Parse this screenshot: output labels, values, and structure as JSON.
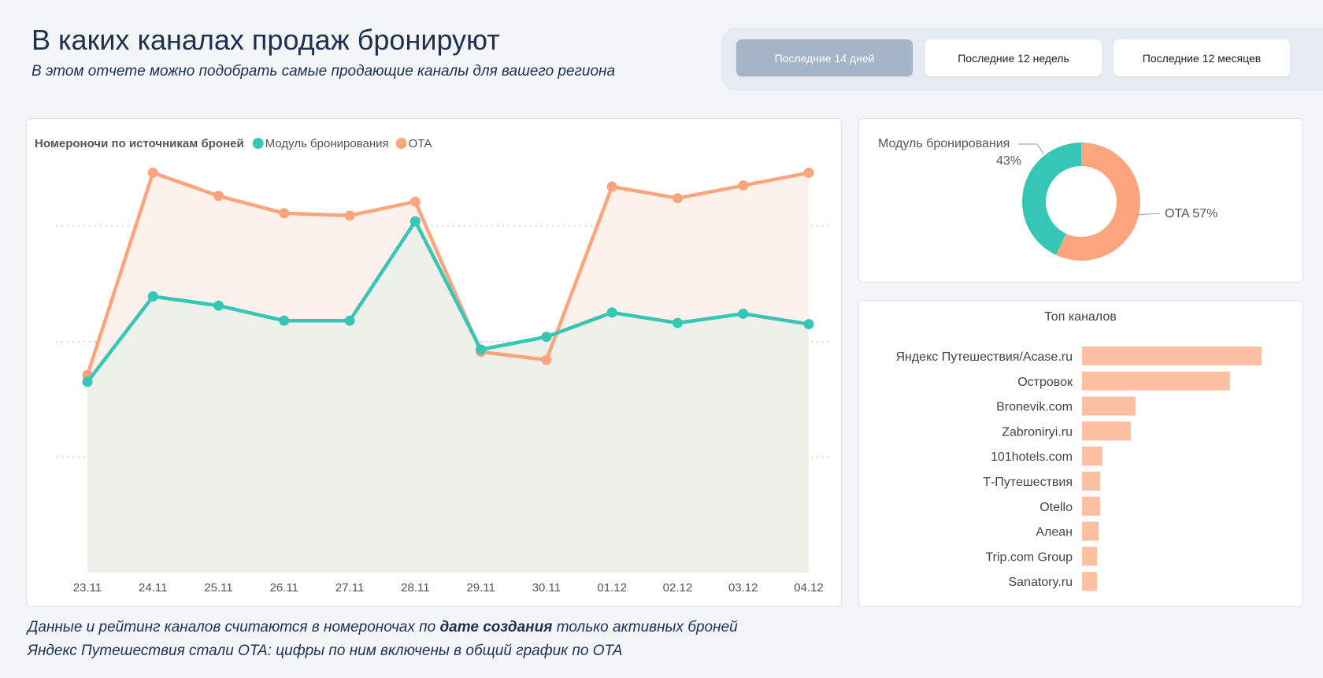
{
  "header": {
    "title": "В каких каналах продаж бронируют",
    "subtitle": "В этом отчете можно подобрать самые продающие каналы для вашего региона"
  },
  "period_filter": {
    "buttons": [
      {
        "label": "Последние 14 дней",
        "active": true
      },
      {
        "label": "Последние 12 недель",
        "active": false
      },
      {
        "label": "Последние 12 месяцев",
        "active": false
      }
    ]
  },
  "colors": {
    "module": "#35c6b6",
    "ota": "#fba47d",
    "bars": "#fcbfa2",
    "active_button": "#a6b4c8"
  },
  "chart_data": [
    {
      "type": "line",
      "title": "Номероночи по источникам броней",
      "legend_placement": "top-left",
      "grid": true,
      "x": [
        "23.11",
        "24.11",
        "25.11",
        "26.11",
        "27.11",
        "28.11",
        "29.11",
        "30.11",
        "01.12",
        "02.12",
        "03.12",
        "04.12"
      ],
      "ylim": [
        0,
        3.7
      ],
      "series": [
        {
          "name": "Модуль бронирования",
          "values": [
            1.65,
            2.39,
            2.31,
            2.18,
            2.18,
            3.04,
            1.93,
            2.04,
            2.25,
            2.16,
            2.24,
            2.15
          ]
        },
        {
          "name": "OTA",
          "values": [
            1.71,
            3.46,
            3.26,
            3.11,
            3.09,
            3.21,
            1.91,
            1.84,
            3.34,
            3.24,
            3.35,
            3.46
          ]
        }
      ]
    },
    {
      "type": "pie",
      "donut": true,
      "slices": [
        {
          "name": "Модуль бронирования",
          "value": 43,
          "label": "43%"
        },
        {
          "name": "OTA",
          "value": 57,
          "label": "OTA 57%"
        }
      ]
    },
    {
      "type": "bar",
      "orientation": "horizontal",
      "title": "Топ каналов",
      "categories": [
        "Яндекс Путешествия/Acase.ru",
        "Островок",
        "Bronevik.com",
        "Zabroniryi.ru",
        "101hotels.com",
        "Т-Путешествия",
        "Otello",
        "Алеан",
        "Trip.com Group",
        "Sanatory.ru"
      ],
      "values": [
        228,
        188,
        68,
        62,
        26,
        23,
        23,
        21,
        19,
        19
      ]
    }
  ],
  "footnotes": {
    "line1_before": "Данные и рейтинг каналов считаются в номероночах по ",
    "line1_bold": "дате создания",
    "line1_after": " только активных броней",
    "line2": "Яндекс Путешествия стали OTA: цифры по ним включены в общий график по OTA"
  }
}
